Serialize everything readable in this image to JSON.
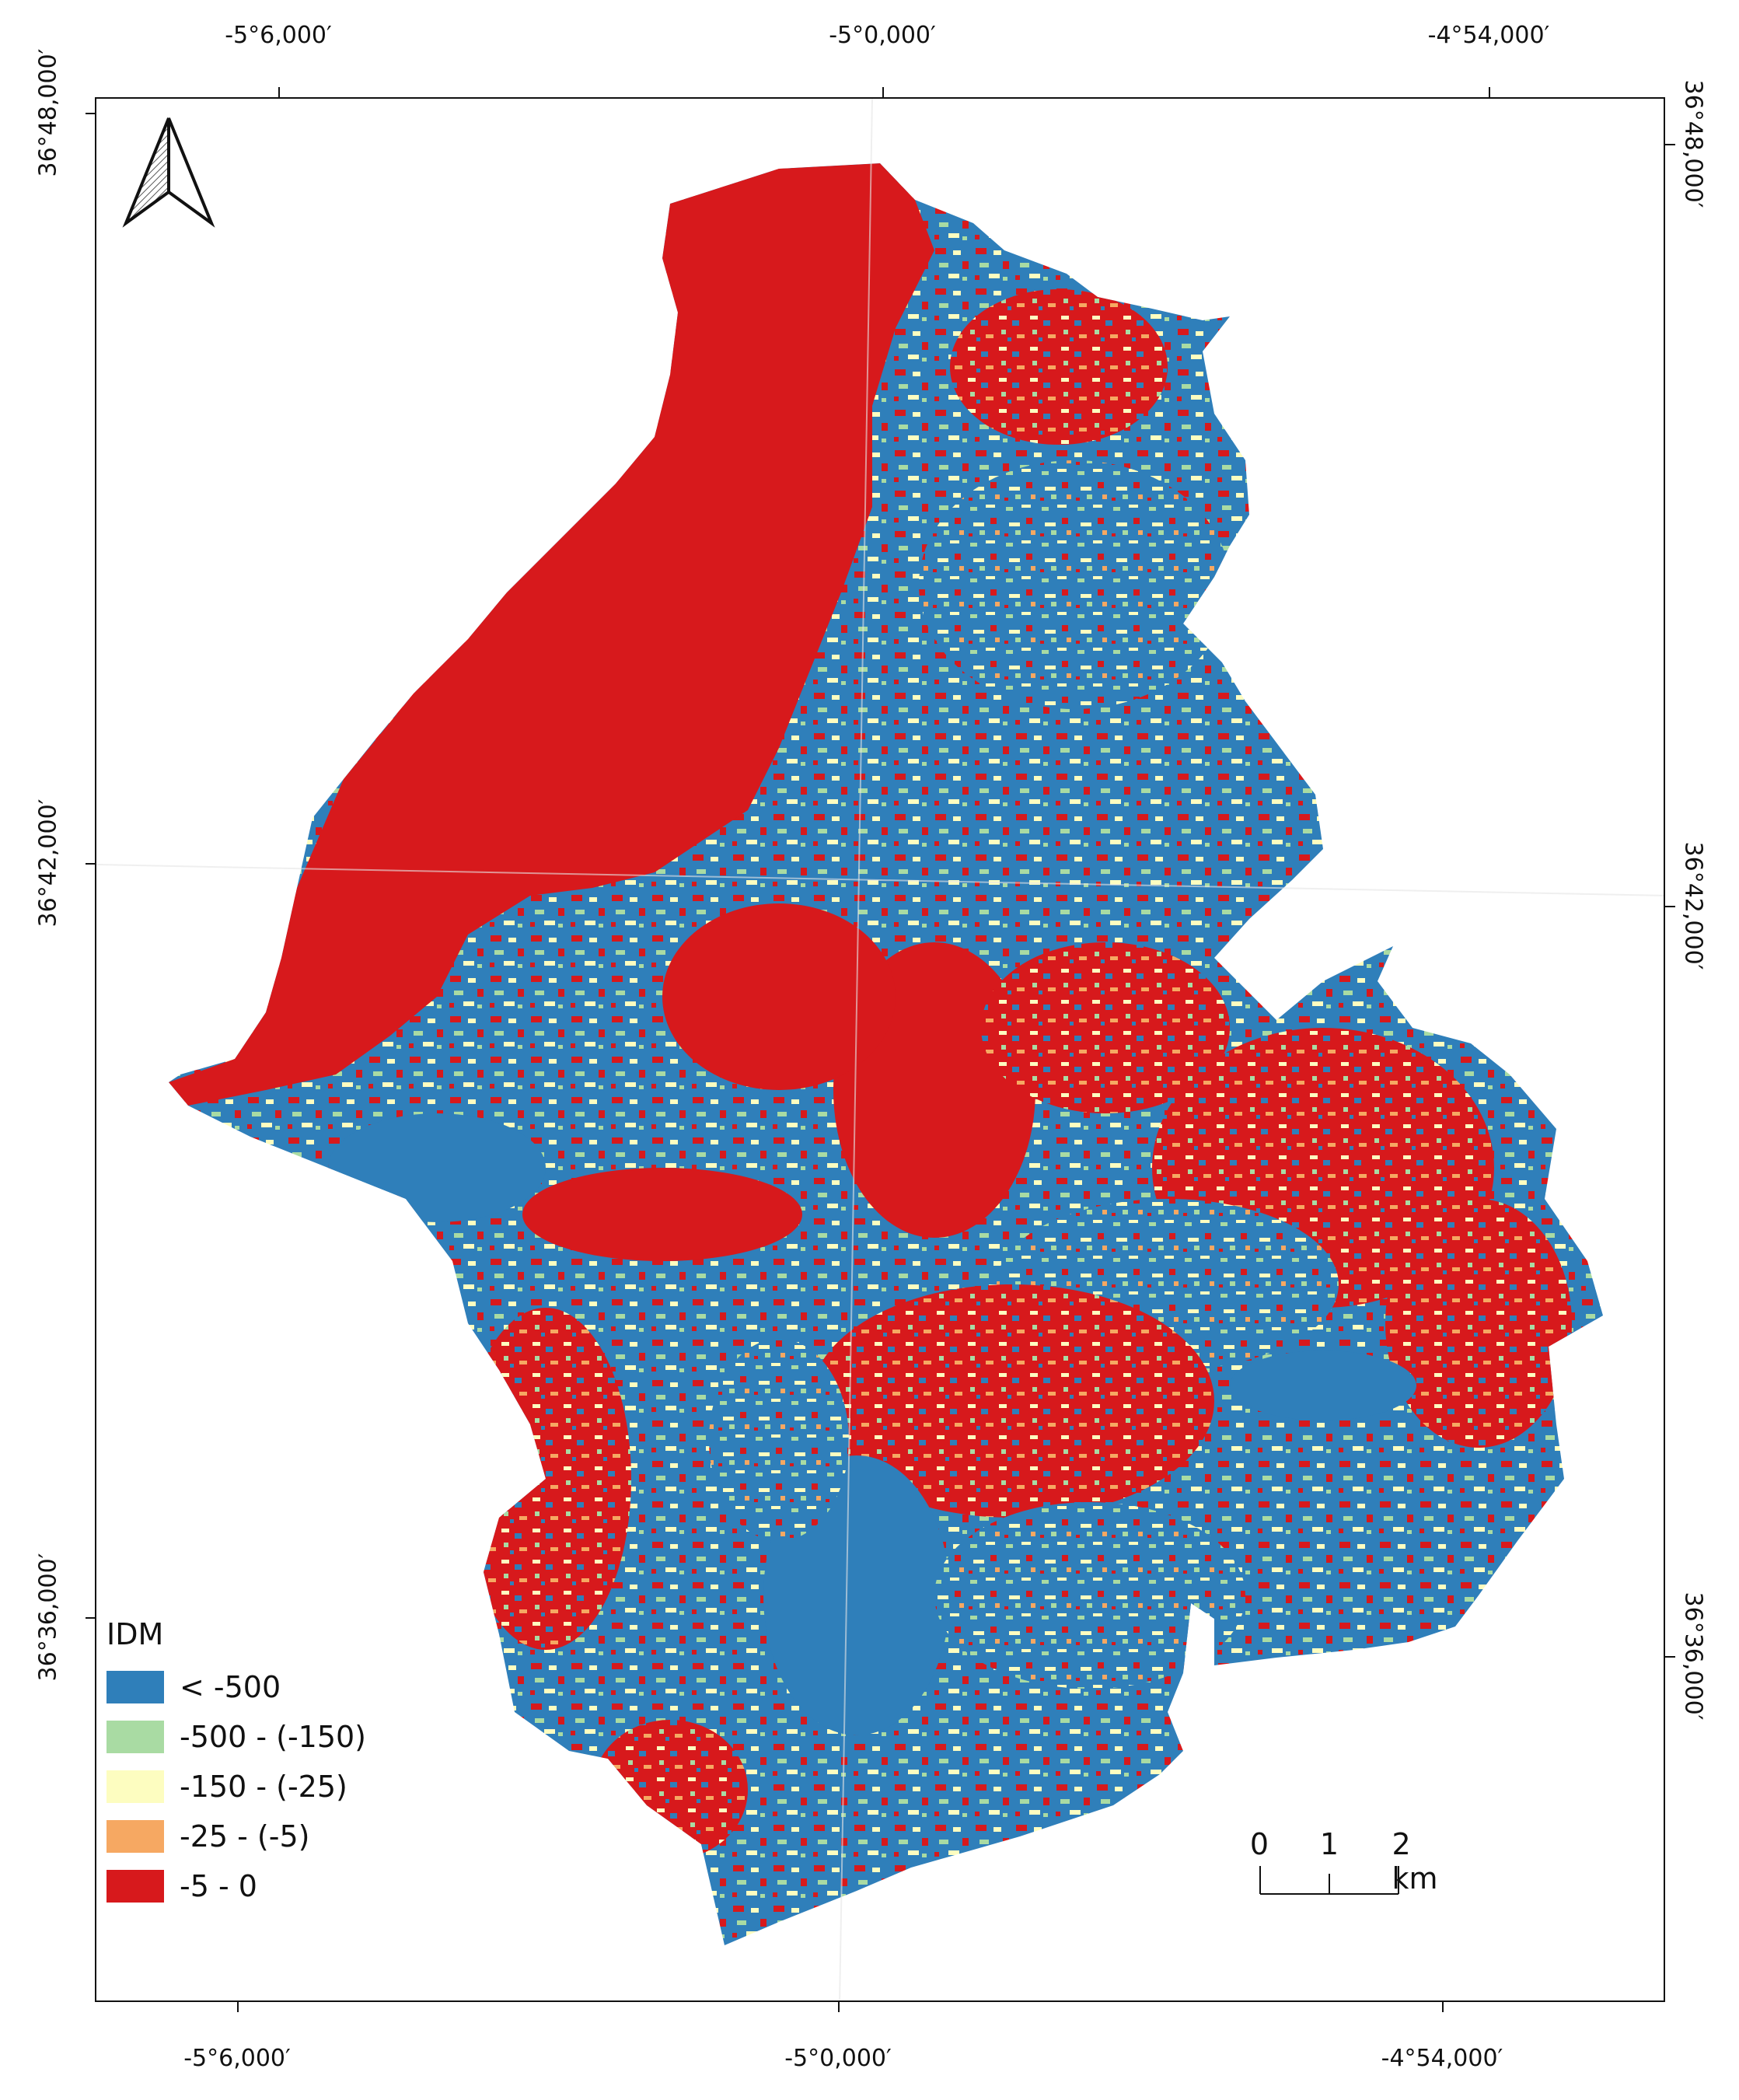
{
  "axes": {
    "top_labels": [
      "-5°6,000′",
      "-5°0,000′",
      "-4°54,000′"
    ],
    "bottom_labels": [
      "-5°6,000′",
      "-5°0,000′",
      "-4°54,000′"
    ],
    "left_labels": [
      "36°48,000′",
      "36°42,000′",
      "36°36,000′"
    ],
    "right_labels": [
      "36°48,000′",
      "36°42,000′",
      "36°36,000′"
    ]
  },
  "legend": {
    "title": "IDM",
    "items": [
      {
        "label": "< -500",
        "color": "#2f7fba"
      },
      {
        "label": "-500 - (-150)",
        "color": "#a9dba3"
      },
      {
        "label": "-150 - (-25)",
        "color": "#fdfdc0"
      },
      {
        "label": "-25 - (-5)",
        "color": "#f6a862"
      },
      {
        "label": "-5 - 0",
        "color": "#d7191c"
      }
    ]
  },
  "scale_bar": {
    "labels": [
      "0",
      "1",
      "2 km"
    ]
  },
  "north_arrow": {
    "icon": "north-arrow-icon"
  }
}
